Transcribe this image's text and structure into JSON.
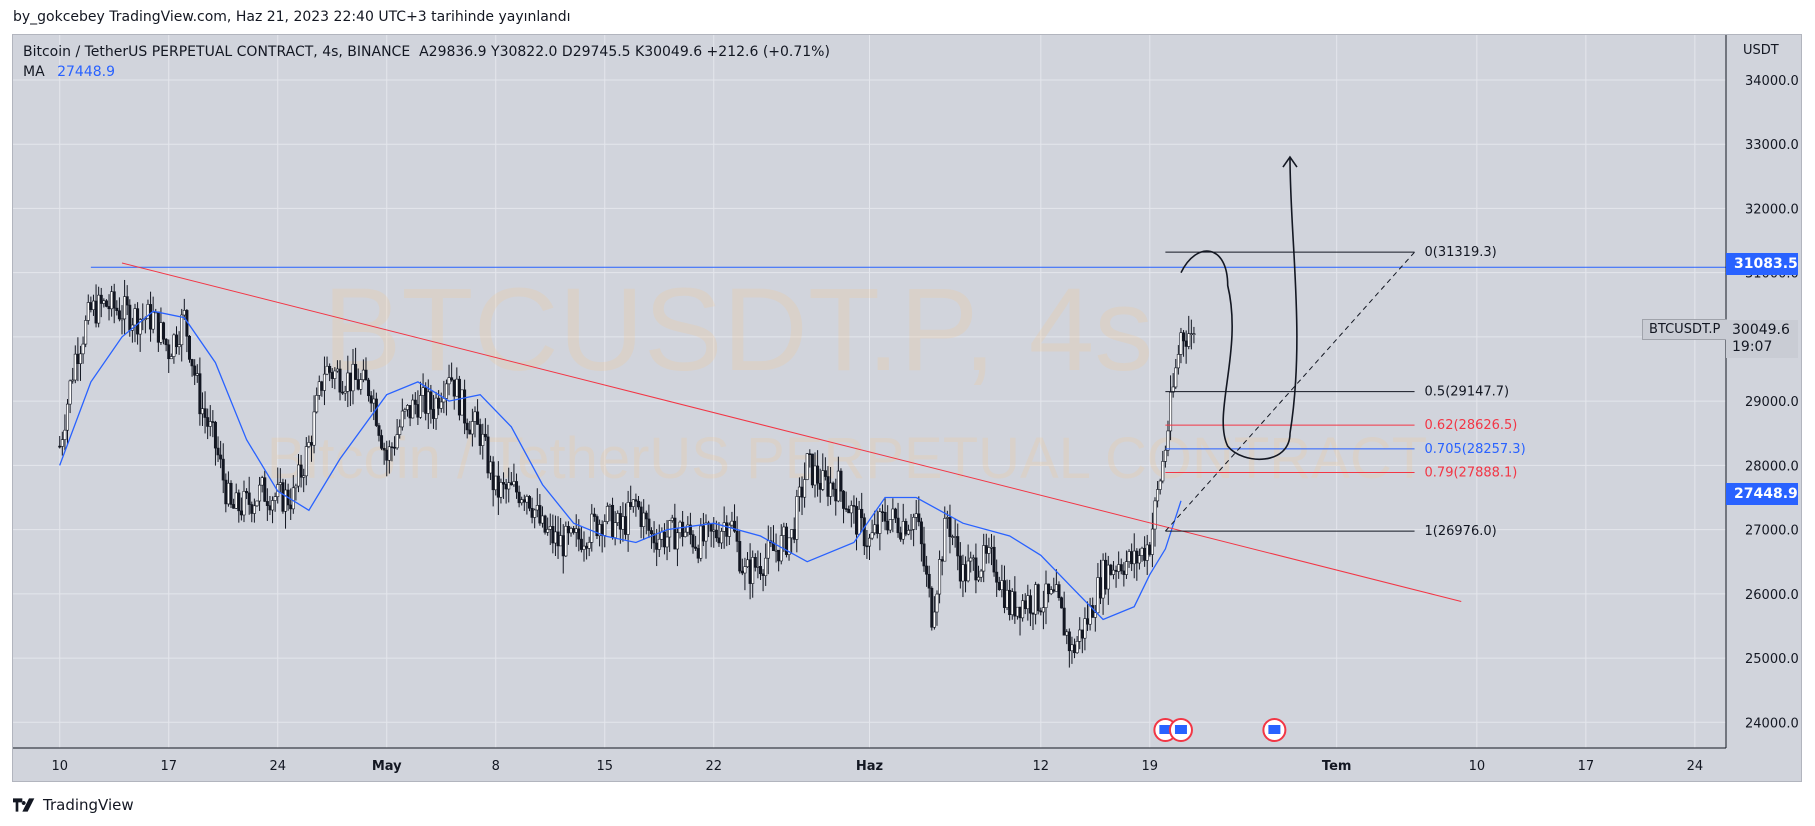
{
  "header": {
    "caption": "by_gokcebey TradingView.com, Haz 21, 2023 22:40 UTC+3 tarihinde yayınlandı"
  },
  "legend": {
    "title": "Bitcoin / TetherUS PERPETUAL CONTRACT, 4s, BINANCE",
    "ohlc": "A29836.9  Y30822.0  D29745.5  K30049.6  +212.6 (+0.71%)",
    "ma_label": "MA",
    "ma_value": "27448.9"
  },
  "watermark": {
    "symbol": "BTCUSDT.P, 4s",
    "name": "Bitcoin / TetherUS PERPETUAL CONTRACT"
  },
  "footer": {
    "brand": "TradingView"
  },
  "price_axis": {
    "currency": "USDT",
    "ticks": [
      "34000.0",
      "33000.0",
      "32000.0",
      "31000.0",
      "30000.0",
      "29000.0",
      "28000.0",
      "27000.0",
      "26000.0",
      "25000.0",
      "24000.0"
    ]
  },
  "time_axis": {
    "ticks": [
      "10",
      "17",
      "24",
      "May",
      "8",
      "15",
      "22",
      "Haz",
      "12",
      "19",
      "Tem",
      "10",
      "17",
      "24"
    ]
  },
  "tags": {
    "resistance": {
      "text": "31083.5",
      "color": "#2962ff"
    },
    "ma": {
      "text": "27448.9",
      "color": "#2962ff"
    },
    "symbol": "BTCUSDT.P",
    "last_price": "30049.6",
    "countdown": "19:07"
  },
  "fib_labels": [
    {
      "text": "0(31319.3)",
      "color": "#131722"
    },
    {
      "text": "0.5(29147.7)",
      "color": "#131722"
    },
    {
      "text": "0.62(28626.5)",
      "color": "#f23645"
    },
    {
      "text": "0.705(28257.3)",
      "color": "#2962ff"
    },
    {
      "text": "0.79(27888.1)",
      "color": "#f23645"
    },
    {
      "text": "1(26976.0)",
      "color": "#131722"
    }
  ],
  "chart_data": {
    "type": "candlestick",
    "symbol": "BTCUSDT.P",
    "interval": "4s",
    "ylim": [
      23600,
      34700
    ],
    "price_ticks": [
      24000,
      25000,
      26000,
      27000,
      28000,
      29000,
      30000,
      31000,
      32000,
      33000,
      34000
    ],
    "series": [
      {
        "name": "MA",
        "color": "#2962ff",
        "x": [
          "2023-04-10",
          "2023-04-12",
          "2023-04-14",
          "2023-04-16",
          "2023-04-18",
          "2023-04-20",
          "2023-04-22",
          "2023-04-24",
          "2023-04-26",
          "2023-04-28",
          "2023-05-01",
          "2023-05-03",
          "2023-05-05",
          "2023-05-07",
          "2023-05-09",
          "2023-05-11",
          "2023-05-13",
          "2023-05-15",
          "2023-05-17",
          "2023-05-19",
          "2023-05-22",
          "2023-05-25",
          "2023-05-28",
          "2023-05-31",
          "2023-06-02",
          "2023-06-04",
          "2023-06-07",
          "2023-06-10",
          "2023-06-12",
          "2023-06-14",
          "2023-06-16",
          "2023-06-18",
          "2023-06-19",
          "2023-06-20",
          "2023-06-21"
        ],
        "y": [
          28000,
          29300,
          30000,
          30400,
          30300,
          29600,
          28400,
          27600,
          27300,
          28100,
          29100,
          29300,
          29000,
          29100,
          28600,
          27700,
          27100,
          26900,
          26800,
          27000,
          27100,
          26900,
          26500,
          26800,
          27500,
          27500,
          27100,
          26900,
          26600,
          26100,
          25600,
          25800,
          26300,
          26700,
          27449
        ]
      }
    ],
    "candles_note": "4h OHLC candles",
    "candles": {
      "x": [
        "2023-04-10",
        "2023-04-11",
        "2023-04-12",
        "2023-04-13",
        "2023-04-14",
        "2023-04-15",
        "2023-04-16",
        "2023-04-17",
        "2023-04-18",
        "2023-04-19",
        "2023-04-20",
        "2023-04-21",
        "2023-04-22",
        "2023-04-23",
        "2023-04-24",
        "2023-04-25",
        "2023-04-26",
        "2023-04-27",
        "2023-04-28",
        "2023-04-29",
        "2023-04-30",
        "2023-05-01",
        "2023-05-02",
        "2023-05-03",
        "2023-05-04",
        "2023-05-05",
        "2023-05-06",
        "2023-05-07",
        "2023-05-08",
        "2023-05-09",
        "2023-05-10",
        "2023-05-11",
        "2023-05-12",
        "2023-05-13",
        "2023-05-14",
        "2023-05-15",
        "2023-05-16",
        "2023-05-17",
        "2023-05-18",
        "2023-05-19",
        "2023-05-20",
        "2023-05-21",
        "2023-05-22",
        "2023-05-23",
        "2023-05-24",
        "2023-05-25",
        "2023-05-26",
        "2023-05-27",
        "2023-05-28",
        "2023-05-29",
        "2023-05-30",
        "2023-05-31",
        "2023-06-01",
        "2023-06-02",
        "2023-06-03",
        "2023-06-04",
        "2023-06-05",
        "2023-06-06",
        "2023-06-07",
        "2023-06-08",
        "2023-06-09",
        "2023-06-10",
        "2023-06-11",
        "2023-06-12",
        "2023-06-13",
        "2023-06-14",
        "2023-06-15",
        "2023-06-16",
        "2023-06-17",
        "2023-06-18",
        "2023-06-19",
        "2023-06-20",
        "2023-06-21"
      ],
      "close": [
        28300,
        29700,
        30400,
        30500,
        30400,
        30300,
        30300,
        29800,
        30300,
        29000,
        28300,
        27300,
        27400,
        27600,
        27500,
        27500,
        28300,
        29500,
        29400,
        29300,
        29200,
        28100,
        28700,
        29000,
        28900,
        29500,
        28800,
        28500,
        27600,
        27600,
        27600,
        27000,
        26800,
        26800,
        27000,
        27200,
        27000,
        27400,
        26900,
        26900,
        27000,
        26800,
        26900,
        27200,
        26300,
        26500,
        26700,
        26900,
        28000,
        27700,
        27700,
        27200,
        26800,
        27200,
        27100,
        27200,
        25700,
        27200,
        26300,
        26500,
        26500,
        25800,
        25900,
        25900,
        25900,
        25100,
        25600,
        26300,
        26500,
        26500,
        26800,
        28300,
        30050
      ]
    },
    "annotations": {
      "horizontal_line": 31083.5,
      "trendline": {
        "from": [
          "2023-04-14",
          31150
        ],
        "to": [
          "2023-07-09",
          25880
        ],
        "color": "#f23645"
      },
      "fib_retracement": {
        "top": 31319.3,
        "bottom": 26976.0,
        "levels": [
          0,
          0.5,
          0.62,
          0.705,
          0.79,
          1
        ]
      },
      "projection": {
        "to": [
          "2023-07-06",
          31319.3
        ],
        "style": "dashed"
      },
      "drawing_arrow_target": 32800
    }
  }
}
